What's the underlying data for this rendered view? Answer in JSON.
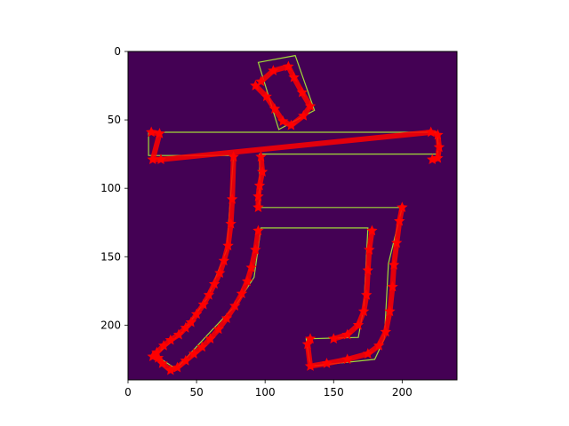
{
  "chart_data": {
    "type": "image",
    "title": "",
    "xlabel": "",
    "ylabel": "",
    "xlim": [
      0,
      240
    ],
    "ylim": [
      240,
      0
    ],
    "xticks": [
      0,
      50,
      100,
      150,
      200
    ],
    "yticks": [
      0,
      50,
      100,
      150,
      200
    ],
    "colors": {
      "background": "#440154",
      "contour": "#a0da39",
      "markers": "#ff0000"
    },
    "contours": [
      [
        [
          95,
          8
        ],
        [
          122,
          3
        ],
        [
          136,
          43
        ],
        [
          110,
          57
        ]
      ],
      [
        [
          15,
          59
        ],
        [
          226,
          59
        ],
        [
          226,
          75
        ],
        [
          96,
          75
        ],
        [
          96,
          114
        ],
        [
          200,
          114
        ],
        [
          190,
          155
        ],
        [
          187,
          210
        ],
        [
          180,
          225
        ],
        [
          133,
          230
        ],
        [
          130,
          210
        ],
        [
          168,
          209
        ],
        [
          172,
          187
        ],
        [
          175,
          129
        ],
        [
          97,
          129
        ],
        [
          92,
          165
        ],
        [
          79,
          185
        ],
        [
          60,
          205
        ],
        [
          35,
          232
        ],
        [
          20,
          222
        ],
        [
          40,
          205
        ],
        [
          58,
          180
        ],
        [
          72,
          145
        ],
        [
          77,
          76
        ],
        [
          15,
          76
        ]
      ]
    ],
    "marker_series": [
      {
        "points": [
          [
            97,
            22
          ],
          [
            106,
            14
          ],
          [
            117,
            11
          ],
          [
            121,
            19
          ],
          [
            127,
            30
          ],
          [
            133,
            40
          ],
          [
            128,
            47
          ],
          [
            119,
            54
          ],
          [
            113,
            51
          ],
          [
            107,
            42
          ],
          [
            101,
            33
          ],
          [
            93,
            25
          ]
        ]
      },
      {
        "points": [
          [
            17,
            59
          ],
          [
            23,
            60
          ],
          [
            18,
            79
          ],
          [
            24,
            79
          ],
          [
            221,
            59
          ],
          [
            226,
            61
          ],
          [
            227,
            70
          ],
          [
            226,
            78
          ],
          [
            222,
            79
          ]
        ]
      },
      {
        "points": [
          [
            77,
            77
          ],
          [
            76,
            108
          ],
          [
            75,
            126
          ],
          [
            73,
            142
          ],
          [
            70,
            153
          ],
          [
            67,
            162
          ],
          [
            63,
            170
          ],
          [
            59,
            178
          ],
          [
            55,
            185
          ],
          [
            50,
            192
          ],
          [
            46,
            198
          ],
          [
            42,
            202
          ],
          [
            37,
            207
          ],
          [
            31,
            211
          ],
          [
            26,
            215
          ],
          [
            21,
            220
          ],
          [
            18,
            223
          ]
        ]
      },
      {
        "points": [
          [
            97,
            77
          ],
          [
            98,
            88
          ],
          [
            96,
            98
          ],
          [
            95,
            106
          ],
          [
            95,
            114
          ]
        ]
      },
      {
        "points": [
          [
            95,
            131
          ],
          [
            93,
            145
          ],
          [
            90,
            158
          ],
          [
            87,
            168
          ],
          [
            83,
            177
          ],
          [
            78,
            186
          ],
          [
            72,
            195
          ],
          [
            66,
            203
          ],
          [
            60,
            210
          ],
          [
            54,
            216
          ],
          [
            48,
            221
          ],
          [
            42,
            226
          ],
          [
            36,
            231
          ],
          [
            31,
            233
          ],
          [
            25,
            228
          ],
          [
            22,
            224
          ]
        ]
      },
      {
        "points": [
          [
            200,
            114
          ],
          [
            198,
            124
          ],
          [
            196,
            140
          ],
          [
            194,
            156
          ],
          [
            193,
            172
          ],
          [
            191,
            190
          ],
          [
            188,
            205
          ],
          [
            183,
            215
          ],
          [
            175,
            221
          ],
          [
            160,
            225
          ],
          [
            145,
            228
          ],
          [
            133,
            230
          ],
          [
            131,
            214
          ],
          [
            133,
            210
          ]
        ]
      },
      {
        "points": [
          [
            178,
            131
          ],
          [
            176,
            145
          ],
          [
            175,
            160
          ],
          [
            174,
            178
          ],
          [
            172,
            190
          ],
          [
            168,
            200
          ],
          [
            160,
            207
          ],
          [
            150,
            210
          ]
        ]
      }
    ]
  }
}
